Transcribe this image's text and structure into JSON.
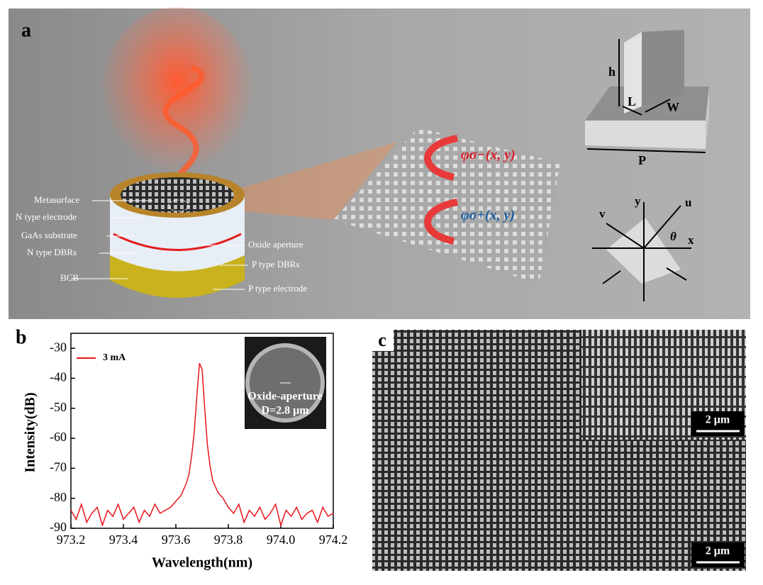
{
  "panel_a": {
    "label": "a",
    "device_labels": {
      "left": [
        "Metasurface",
        "N type electrode",
        "GaAs substrate",
        "N type DBRs",
        "BCB"
      ],
      "right": [
        "Oxide aperture",
        "P type DBRs",
        "P type electrode"
      ]
    },
    "phase_labels": [
      "φσ−(x, y)",
      "φσ+(x, y)"
    ],
    "unit_cell": {
      "h": "h",
      "L": "L",
      "W": "W",
      "P": "P"
    },
    "axes": {
      "y": "y",
      "u": "u",
      "v": "v",
      "theta": "θ",
      "x": "x"
    }
  },
  "chart_data": {
    "type": "line",
    "panel_label": "b",
    "xlabel": "Wavelength(nm)",
    "ylabel": "Intensity(dB)",
    "x": [
      973.2,
      973.22,
      973.24,
      973.26,
      973.28,
      973.3,
      973.32,
      973.34,
      973.36,
      973.38,
      973.4,
      973.42,
      973.44,
      973.46,
      973.48,
      973.5,
      973.52,
      973.54,
      973.56,
      973.58,
      973.6,
      973.62,
      973.64,
      973.65,
      973.66,
      973.67,
      973.68,
      973.69,
      973.7,
      973.71,
      973.72,
      973.73,
      973.74,
      973.76,
      973.78,
      973.8,
      973.82,
      973.84,
      973.86,
      973.88,
      973.9,
      973.92,
      973.94,
      973.96,
      973.98,
      974.0,
      974.02,
      974.04,
      974.06,
      974.08,
      974.1,
      974.12,
      974.14,
      974.16,
      974.18,
      974.2
    ],
    "series": [
      {
        "name": "3 mA",
        "color": "#e8141a",
        "values": [
          -84,
          -87,
          -82,
          -88,
          -85,
          -83,
          -89,
          -84,
          -86,
          -82,
          -87,
          -85,
          -83,
          -88,
          -84,
          -86,
          -82,
          -85,
          -84,
          -83,
          -81,
          -79,
          -75,
          -72,
          -66,
          -58,
          -46,
          -35,
          -37,
          -50,
          -62,
          -69,
          -74,
          -78,
          -80,
          -83,
          -85,
          -82,
          -88,
          -84,
          -86,
          -83,
          -87,
          -85,
          -82,
          -89,
          -84,
          -86,
          -83,
          -87,
          -85,
          -84,
          -88,
          -83,
          -86,
          -85
        ]
      }
    ],
    "xlim": [
      973.2,
      974.2
    ],
    "ylim": [
      -90,
      -25
    ],
    "xticks": [
      973.2,
      973.4,
      973.6,
      973.8,
      {
        "value": 974,
        "label": "974.0"
      },
      974.2
    ],
    "yticks": [
      -90,
      -80,
      -70,
      -60,
      -50,
      -40,
      -30
    ],
    "inset": [
      "Oxide-aperture",
      "D=2.8 μm"
    ]
  },
  "panel_c": {
    "label": "c",
    "scale_bars": [
      "2 μm",
      "2 μm"
    ]
  }
}
